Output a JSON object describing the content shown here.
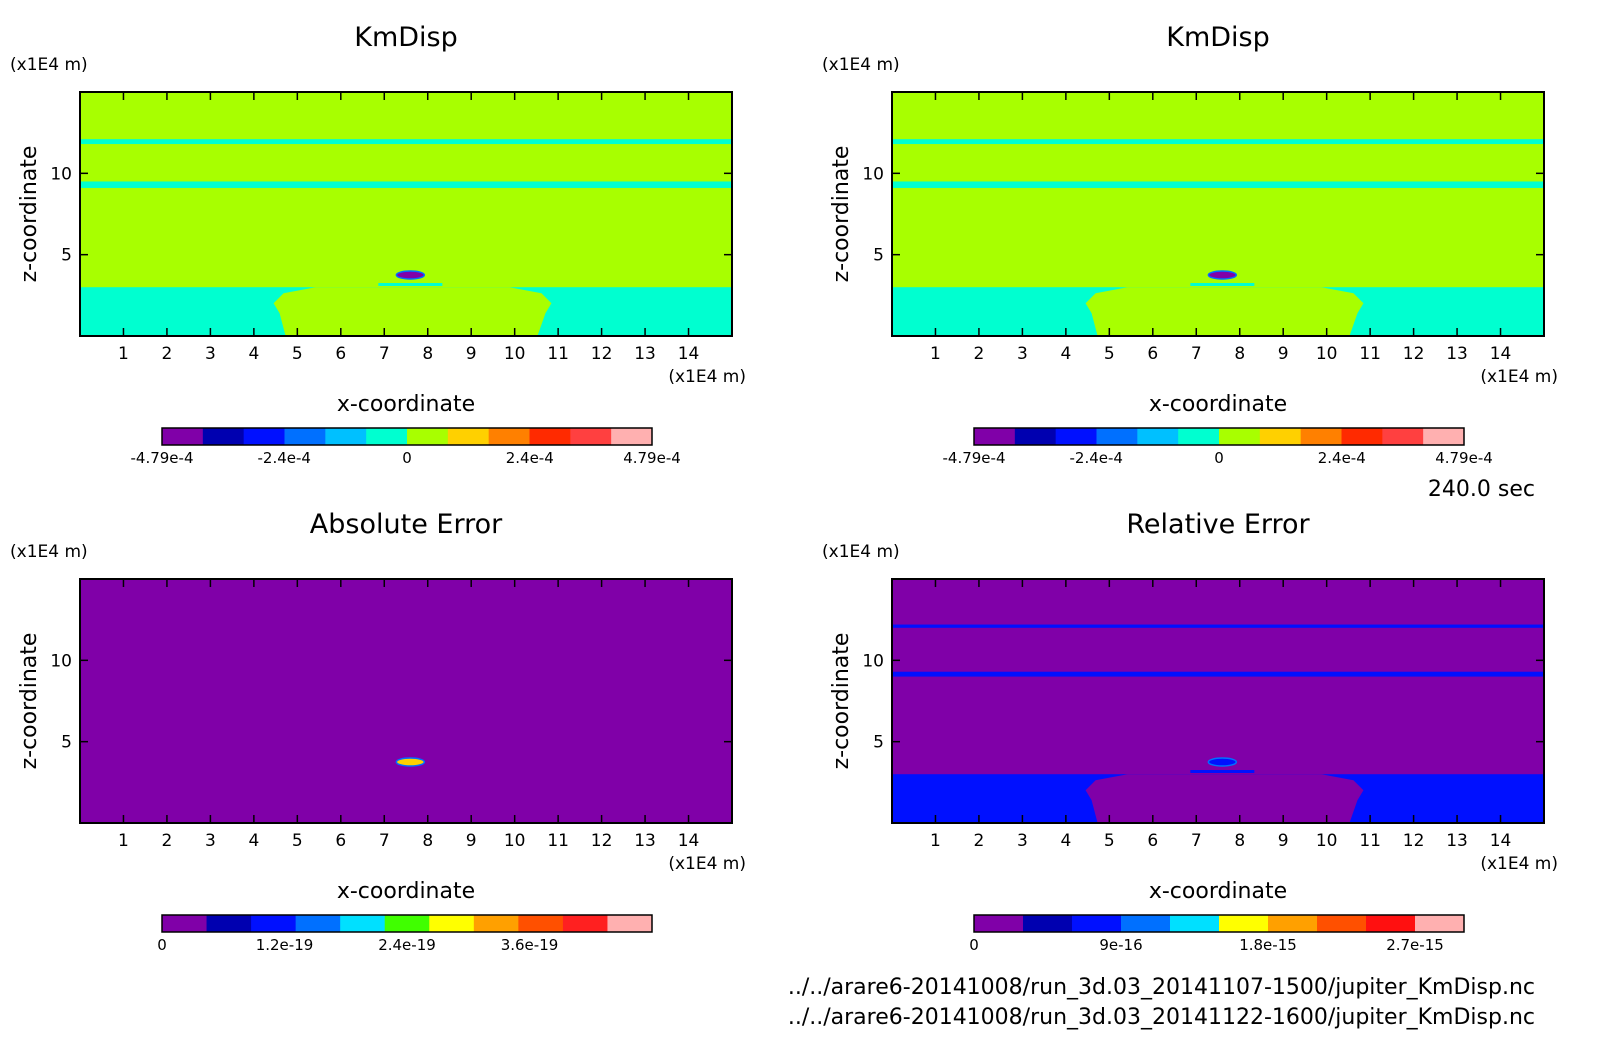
{
  "time_label": "240.0 sec",
  "file_paths": [
    "../../arare6-20141008/run_3d.03_20141107-1500/jupiter_KmDisp.nc",
    "../../arare6-20141008/run_3d.03_20141122-1600/jupiter_KmDisp.nc"
  ],
  "chart_data": [
    {
      "type": "heatmap",
      "title": "KmDisp",
      "xlabel": "x-coordinate",
      "ylabel": "z-coordinate",
      "x_unit": "(x1E4 m)",
      "y_unit": "(x1E4 m)",
      "xlim": [
        0,
        15
      ],
      "ylim": [
        0,
        15
      ],
      "x_ticks": [
        1,
        2,
        3,
        4,
        5,
        6,
        7,
        8,
        9,
        10,
        11,
        12,
        13,
        14
      ],
      "y_ticks": [
        5,
        10
      ],
      "colorbar": {
        "min": -0.000479,
        "max": 0.000479,
        "colors": [
          "#8000a8",
          "#0000b0",
          "#0010ff",
          "#0070ff",
          "#00c0ff",
          "#00ffd0",
          "#a8ff00",
          "#ffd000",
          "#ff8000",
          "#ff2a00",
          "#ff4040",
          "#ffb0b0"
        ],
        "tick_labels": [
          "-4.79e-4",
          "-2.4e-4",
          "0",
          "2.4e-4",
          "4.79e-4"
        ]
      },
      "field": {
        "background": "#a8ff00",
        "lower_band_color": "#00ffd0",
        "lower_band_z_top": 3.0,
        "bands": [
          {
            "z0": 11.8,
            "z1": 12.1,
            "color": "#00ffd0"
          },
          {
            "z0": 9.1,
            "z1": 9.5,
            "color": "#00ffd0"
          }
        ],
        "central_plume": {
          "x0": 4.5,
          "x1": 10.8,
          "z_top": 3.0,
          "color": "#a8ff00"
        },
        "anomaly": {
          "x": 7.6,
          "z": 3.75,
          "color": "#8000a8"
        }
      }
    },
    {
      "type": "heatmap",
      "title": "KmDisp",
      "xlabel": "x-coordinate",
      "ylabel": "z-coordinate",
      "x_unit": "(x1E4 m)",
      "y_unit": "(x1E4 m)",
      "xlim": [
        0,
        15
      ],
      "ylim": [
        0,
        15
      ],
      "x_ticks": [
        1,
        2,
        3,
        4,
        5,
        6,
        7,
        8,
        9,
        10,
        11,
        12,
        13,
        14
      ],
      "y_ticks": [
        5,
        10
      ],
      "colorbar": {
        "min": -0.000479,
        "max": 0.000479,
        "colors": [
          "#8000a8",
          "#0000b0",
          "#0010ff",
          "#0070ff",
          "#00c0ff",
          "#00ffd0",
          "#a8ff00",
          "#ffd000",
          "#ff8000",
          "#ff2a00",
          "#ff4040",
          "#ffb0b0"
        ],
        "tick_labels": [
          "-4.79e-4",
          "-2.4e-4",
          "0",
          "2.4e-4",
          "4.79e-4"
        ]
      },
      "field": {
        "background": "#a8ff00",
        "lower_band_color": "#00ffd0",
        "lower_band_z_top": 3.0,
        "bands": [
          {
            "z0": 11.8,
            "z1": 12.1,
            "color": "#00ffd0"
          },
          {
            "z0": 9.1,
            "z1": 9.5,
            "color": "#00ffd0"
          }
        ],
        "central_plume": {
          "x0": 4.5,
          "x1": 10.8,
          "z_top": 3.0,
          "color": "#a8ff00"
        },
        "anomaly": {
          "x": 7.6,
          "z": 3.75,
          "color": "#8000a8"
        }
      }
    },
    {
      "type": "heatmap",
      "title": "Absolute Error",
      "xlabel": "x-coordinate",
      "ylabel": "z-coordinate",
      "x_unit": "(x1E4 m)",
      "y_unit": "(x1E4 m)",
      "xlim": [
        0,
        15
      ],
      "ylim": [
        0,
        15
      ],
      "x_ticks": [
        1,
        2,
        3,
        4,
        5,
        6,
        7,
        8,
        9,
        10,
        11,
        12,
        13,
        14
      ],
      "y_ticks": [
        5,
        10
      ],
      "colorbar": {
        "min": 0,
        "max": 4.8e-19,
        "colors": [
          "#8000a8",
          "#0000b0",
          "#0010ff",
          "#0070ff",
          "#00e0ff",
          "#40ff00",
          "#ffff00",
          "#ffa000",
          "#ff5000",
          "#ff2020",
          "#ffb0b0"
        ],
        "tick_labels": [
          "0",
          "1.2e-19",
          "2.4e-19",
          "3.6e-19"
        ]
      },
      "field": {
        "background": "#8000a8",
        "anomaly": {
          "x": 7.6,
          "z": 3.75,
          "color": "#ffd000"
        }
      }
    },
    {
      "type": "heatmap",
      "title": "Relative Error",
      "xlabel": "x-coordinate",
      "ylabel": "z-coordinate",
      "x_unit": "(x1E4 m)",
      "y_unit": "(x1E4 m)",
      "xlim": [
        0,
        15
      ],
      "ylim": [
        0,
        15
      ],
      "x_ticks": [
        1,
        2,
        3,
        4,
        5,
        6,
        7,
        8,
        9,
        10,
        11,
        12,
        13,
        14
      ],
      "y_ticks": [
        5,
        10
      ],
      "colorbar": {
        "min": 0,
        "max": 3e-15,
        "colors": [
          "#8000a8",
          "#0000b0",
          "#0010ff",
          "#0070ff",
          "#00e0ff",
          "#ffff00",
          "#ffa000",
          "#ff5000",
          "#ff1010",
          "#ffb0b0"
        ],
        "tick_labels": [
          "0",
          "9e-16",
          "1.8e-15",
          "2.7e-15"
        ]
      },
      "field": {
        "background": "#8000a8",
        "lower_band_color": "#0010ff",
        "lower_band_z_top": 3.0,
        "bands": [
          {
            "z0": 12.0,
            "z1": 12.2,
            "color": "#0010ff"
          },
          {
            "z0": 9.0,
            "z1": 9.3,
            "color": "#0010ff"
          }
        ],
        "central_plume": {
          "x0": 4.5,
          "x1": 10.8,
          "z_top": 3.0,
          "color": "#8000a8"
        },
        "anomaly": {
          "x": 7.6,
          "z": 3.75,
          "color": "#0010ff"
        }
      }
    }
  ]
}
